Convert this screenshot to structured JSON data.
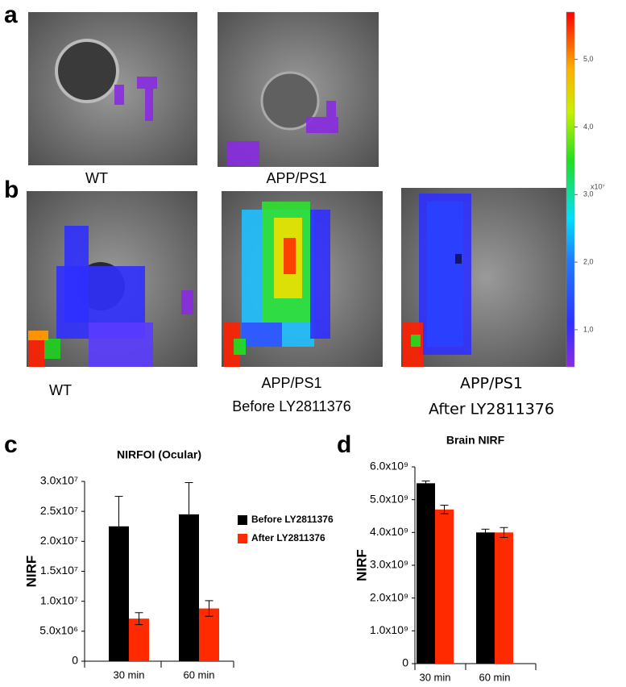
{
  "panel_labels": [
    "a",
    "b",
    "c",
    "d"
  ],
  "images": {
    "a": [
      "WT",
      "APP/PS1"
    ],
    "b": [
      [
        "WT"
      ],
      [
        "APP/PS1",
        "Before LY2811376"
      ],
      [
        "APP/PS1",
        "After LY2811376"
      ]
    ]
  },
  "colorbar": {
    "lim": [
      0.45,
      5.7
    ],
    "ticks": [
      {
        "value": 1,
        "label": "1,0"
      },
      {
        "value": 2,
        "label": "2,0"
      },
      {
        "value": 3,
        "label": "3,0"
      },
      {
        "value": 4,
        "label": "4,0"
      },
      {
        "value": 5,
        "label": "5,0"
      }
    ],
    "multiplier": "x10⁷"
  },
  "chart_data": [
    {
      "type": "bar",
      "title": "NIRFOI (Ocular)",
      "y_label": "NIRF",
      "categories": [
        "30 min",
        "60 min"
      ],
      "series": [
        {
          "name": "Before LY2811376",
          "color": "#000000",
          "values": [
            22500000,
            24500000
          ],
          "errors": [
            5000000,
            5300000
          ]
        },
        {
          "name": "After LY2811376",
          "color": "#ff2a00",
          "values": [
            7100000,
            8800000
          ],
          "errors": [
            1000000,
            1300000
          ]
        }
      ],
      "ylim": [
        0,
        30000000
      ],
      "yticks": [
        0,
        {
          "value": 5000000,
          "label": "5.0x10⁶"
        },
        {
          "value": 10000000,
          "label": "1.0x10⁷"
        },
        {
          "value": 15000000,
          "label": "1.5x10⁷"
        },
        {
          "value": 20000000,
          "label": "2.0x10⁷"
        },
        {
          "value": 25000000,
          "label": "2.5x10⁷"
        },
        {
          "value": 30000000,
          "label": "3.0x10⁷"
        }
      ],
      "legend": "right"
    },
    {
      "type": "bar",
      "title": "Brain NIRF",
      "y_label": "NIRF",
      "categories": [
        "30 min",
        "60 min"
      ],
      "series": [
        {
          "color": "#000000",
          "values": [
            5500000000,
            4000000000
          ],
          "errors": [
            70000000,
            100000000
          ]
        },
        {
          "color": "#ff2a00",
          "values": [
            4700000000,
            4000000000
          ],
          "errors": [
            130000000,
            150000000
          ]
        }
      ],
      "ylim": [
        0,
        6000000000
      ],
      "yticks": [
        0,
        {
          "value": 1000000000,
          "label": "1.0x10⁹"
        },
        {
          "value": 2000000000,
          "label": "2.0x10⁹"
        },
        {
          "value": 3000000000,
          "label": "3.0x10⁹"
        },
        {
          "value": 4000000000,
          "label": "4.0x10⁹"
        },
        {
          "value": 5000000000,
          "label": "5.0x10⁹"
        },
        {
          "value": 6000000000,
          "label": "6.0x10⁹"
        }
      ]
    }
  ]
}
